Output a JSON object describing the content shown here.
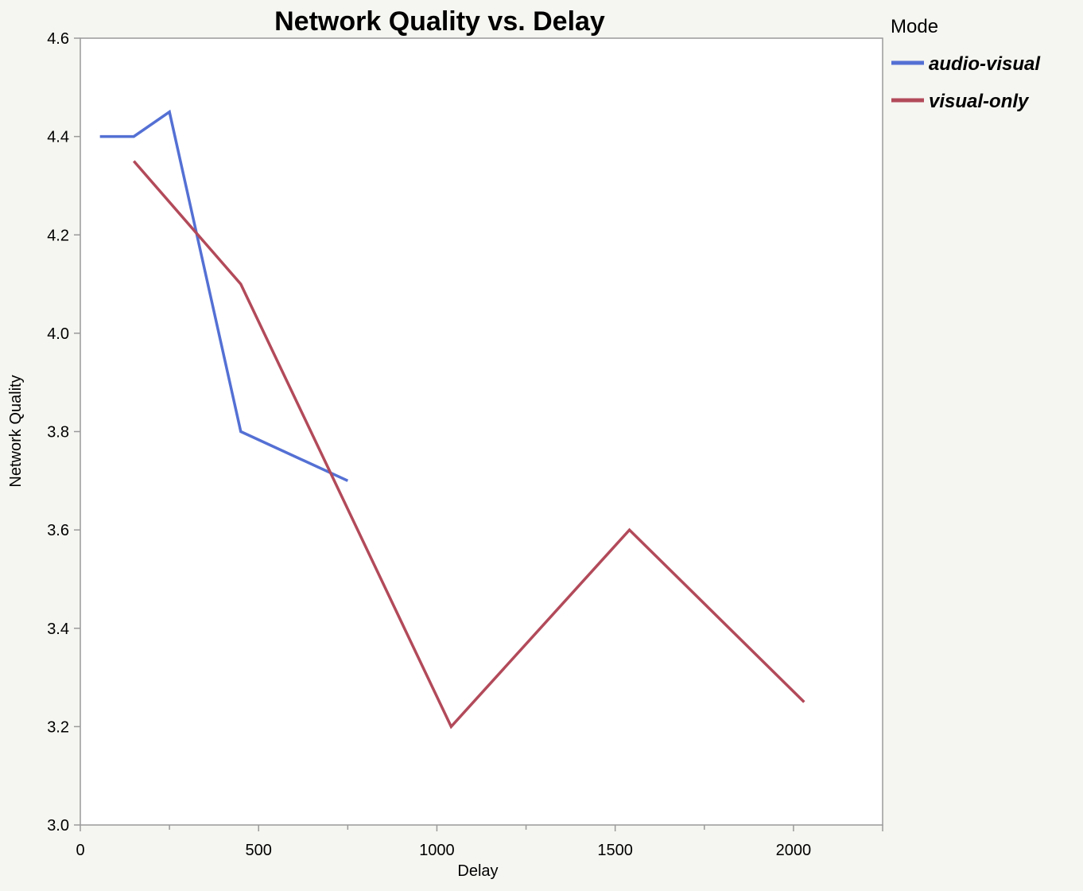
{
  "chart_data": {
    "type": "line",
    "title": "Network Quality vs. Delay",
    "xlabel": "Delay",
    "ylabel": "Network Quality",
    "xlim": [
      0,
      2250
    ],
    "ylim": [
      3.0,
      4.6
    ],
    "x_ticks": [
      0,
      500,
      1000,
      1500,
      2000
    ],
    "x_tick_labels": [
      "0",
      "500",
      "1000",
      "1500",
      "2000"
    ],
    "y_ticks": [
      3.0,
      3.2,
      3.4,
      3.6,
      3.8,
      4.0,
      4.2,
      4.4,
      4.6
    ],
    "y_tick_labels": [
      "3.0",
      "3.2",
      "3.4",
      "3.6",
      "3.8",
      "4.0",
      "4.2",
      "4.4",
      "4.6"
    ],
    "grid": false,
    "legend": {
      "title": "Mode",
      "placement": "right"
    },
    "series": [
      {
        "name": "audio-visual",
        "color": "#5470d4",
        "x": [
          55,
          150,
          250,
          450,
          750
        ],
        "y": [
          4.4,
          4.4,
          4.45,
          3.8,
          3.7
        ]
      },
      {
        "name": "visual-only",
        "color": "#b24a5a",
        "x": [
          150,
          450,
          1040,
          1540,
          2030
        ],
        "y": [
          4.35,
          4.1,
          3.2,
          3.6,
          3.25
        ]
      }
    ]
  }
}
